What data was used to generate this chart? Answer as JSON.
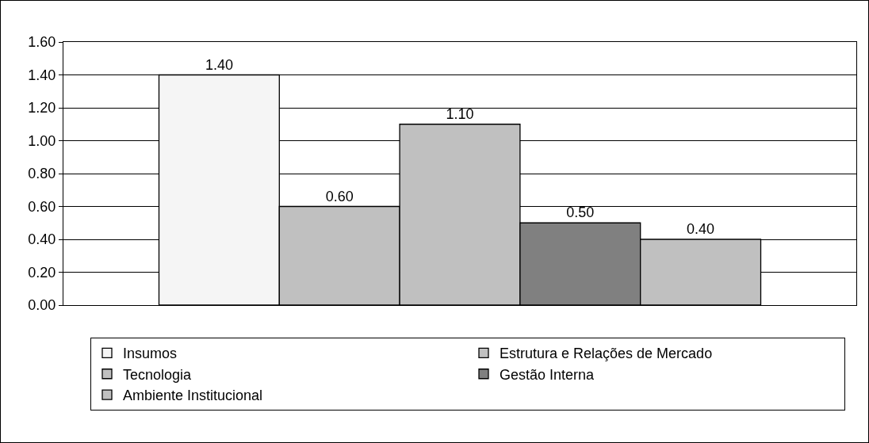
{
  "chart_data": {
    "type": "bar",
    "categories": [
      null
    ],
    "series": [
      {
        "name": "Insumos",
        "color": "#f5f5f5",
        "values": [
          1.4
        ],
        "value_labels": [
          "1.40"
        ]
      },
      {
        "name": "Estrutura e Relações de Mercado",
        "color": "#c0c0c0",
        "values": [
          0.6
        ],
        "value_labels": [
          "0.60"
        ]
      },
      {
        "name": "Tecnologia",
        "color": "#c0c0c0",
        "values": [
          1.1
        ],
        "value_labels": [
          "1.10"
        ]
      },
      {
        "name": "Gestão Interna",
        "color": "#808080",
        "values": [
          0.5
        ],
        "value_labels": [
          "0.50"
        ]
      },
      {
        "name": "Ambiente Institucional",
        "color": "#c0c0c0",
        "values": [
          0.4
        ],
        "value_labels": [
          "0.40"
        ]
      }
    ],
    "ylim": [
      0,
      1.6
    ],
    "yticks": [
      {
        "value": 0,
        "label": "0.00"
      },
      {
        "value": 0.2,
        "label": "0.20"
      },
      {
        "value": 0.4,
        "label": "0.40"
      },
      {
        "value": 0.6,
        "label": "0.60"
      },
      {
        "value": 0.8,
        "label": "0.80"
      },
      {
        "value": 1,
        "label": "1.00"
      },
      {
        "value": 1.2,
        "label": "1.20"
      },
      {
        "value": 1.4,
        "label": "1.40"
      },
      {
        "value": 1.6,
        "label": "1.60"
      }
    ],
    "grid": "y",
    "legend": "bottom"
  }
}
